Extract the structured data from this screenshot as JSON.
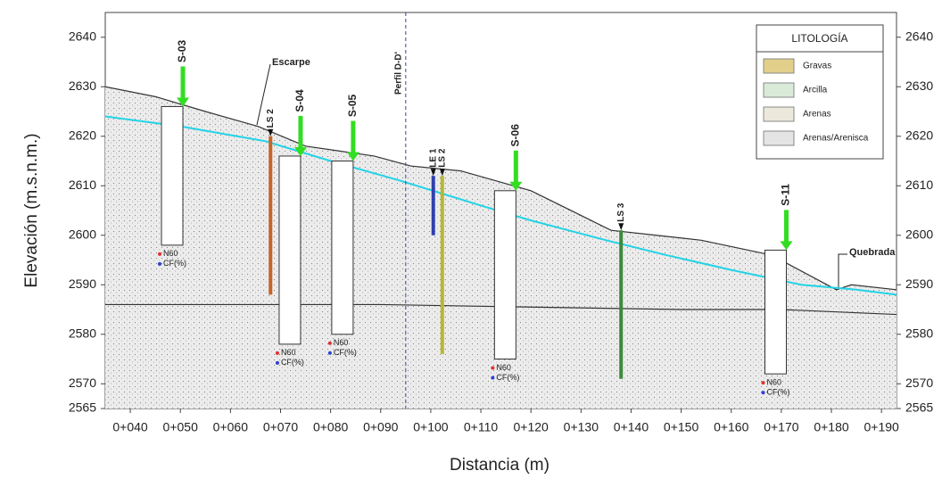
{
  "chart_data": {
    "type": "profile",
    "xlabel": "Distancia (m)",
    "ylabel": "Elevación (m.s.n.m.)",
    "xlim": [
      35,
      193
    ],
    "ylim": [
      2565,
      2645
    ],
    "xticks": [
      {
        "value": 40,
        "label": "0+040"
      },
      {
        "value": 50,
        "label": "0+050"
      },
      {
        "value": 60,
        "label": "0+060"
      },
      {
        "value": 70,
        "label": "0+070"
      },
      {
        "value": 80,
        "label": "0+080"
      },
      {
        "value": 90,
        "label": "0+090"
      },
      {
        "value": 100,
        "label": "0+100"
      },
      {
        "value": 110,
        "label": "0+110"
      },
      {
        "value": 120,
        "label": "0+120"
      },
      {
        "value": 130,
        "label": "0+130"
      },
      {
        "value": 140,
        "label": "0+140"
      },
      {
        "value": 150,
        "label": "0+150"
      },
      {
        "value": 160,
        "label": "0+160"
      },
      {
        "value": 170,
        "label": "0+170"
      },
      {
        "value": 180,
        "label": "0+180"
      },
      {
        "value": 190,
        "label": "0+190"
      }
    ],
    "yticks": [
      2565,
      2570,
      2580,
      2590,
      2600,
      2610,
      2620,
      2630,
      2640
    ],
    "series": [
      {
        "color": "#333333",
        "x": [
          35,
          45,
          55,
          65.5,
          75,
          88.7,
          96,
          106,
          120,
          136,
          145,
          154,
          168,
          181,
          184,
          193
        ],
        "values": [
          2630,
          2628,
          2625,
          2622,
          2618,
          2616,
          2614,
          2613,
          2609,
          2601,
          2600,
          2599,
          2596,
          2589,
          2590,
          2589
        ]
      },
      {
        "color": "#22d3e6",
        "x": [
          35,
          50,
          67,
          80,
          94,
          110,
          120,
          135,
          147,
          160,
          174,
          185,
          193
        ],
        "values": [
          2624,
          2622,
          2619,
          2615,
          2611,
          2606,
          2603,
          2599,
          2596,
          2593,
          2590,
          2589,
          2588
        ]
      },
      {
        "color": "#333333",
        "x": [
          35,
          60,
          90,
          120,
          150,
          170,
          193
        ],
        "values": [
          2586,
          2586,
          2586,
          2585.5,
          2585,
          2585,
          2584
        ]
      }
    ],
    "boreholes": [
      {
        "name": "S-03",
        "x": 50.5,
        "top": 2626,
        "bottom": 2598
      },
      {
        "name": "S-04",
        "x": 74,
        "top": 2616,
        "bottom": 2578
      },
      {
        "name": "S-05",
        "x": 84.5,
        "top": 2615,
        "bottom": 2580
      },
      {
        "name": "S-06",
        "x": 117,
        "top": 2609,
        "bottom": 2575
      },
      {
        "name": "S-11",
        "x": 171,
        "top": 2597,
        "bottom": 2572
      }
    ],
    "wells": [
      {
        "name": "LS 2",
        "x": 68,
        "top": 2620,
        "bottom": 2588,
        "color": "#c8642a"
      },
      {
        "name": "LE 1",
        "x": 100.5,
        "top": 2612,
        "bottom": 2600,
        "color": "#3040b0"
      },
      {
        "name": "LS 2",
        "x": 102.3,
        "top": 2612,
        "bottom": 2576,
        "color": "#b8b830"
      },
      {
        "name": "LS 3",
        "x": 138,
        "top": 2601,
        "bottom": 2571,
        "color": "#3c8a3c"
      }
    ],
    "section_line": {
      "label": "Perfil D-D'",
      "x": 95
    },
    "annotations": [
      "Escarpe",
      "Quebrada"
    ],
    "marker_labels": {
      "n60": "N60",
      "cf": "CF(%)"
    },
    "legend": {
      "title": "LITOLOGÍA",
      "items": [
        {
          "name": "Gravas",
          "color": "#e2cf8a"
        },
        {
          "name": "Arcilla",
          "color": "#d9ead9"
        },
        {
          "name": "Arenas",
          "color": "#ece9dc"
        },
        {
          "name": "Arenas/Arenisca",
          "color": "#e4e4e4"
        }
      ]
    }
  }
}
